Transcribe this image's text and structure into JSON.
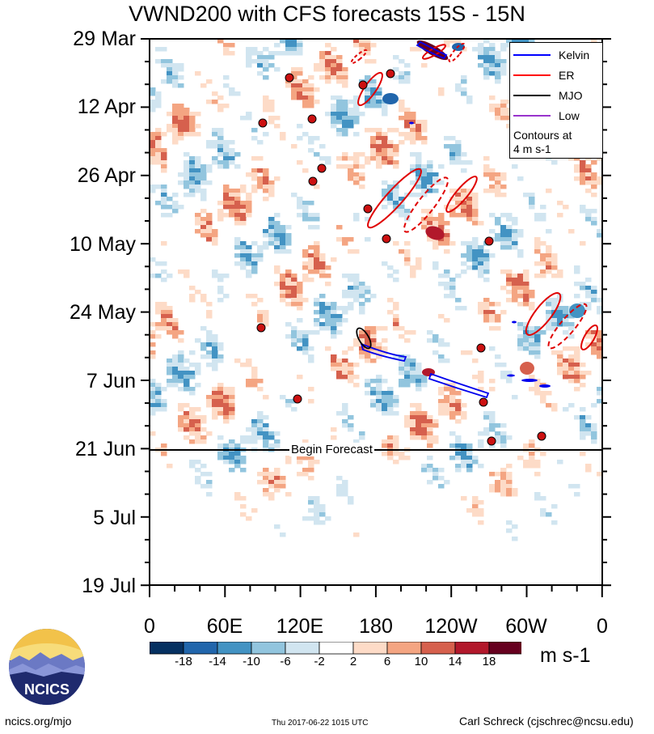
{
  "chart_data": {
    "type": "heatmap",
    "title": "VWND200 with CFS forecasts  15S - 15N",
    "xlabel": "",
    "ylabel": "",
    "x_ticks": [
      "0",
      "60E",
      "120E",
      "180",
      "120W",
      "60W",
      "0"
    ],
    "x_range_deg_east": [
      0,
      360
    ],
    "y_ticks": [
      "29 Mar",
      "12 Apr",
      "26 Apr",
      "10 May",
      "24 May",
      "7 Jun",
      "21 Jun",
      "5 Jul",
      "19 Jul"
    ],
    "y_range": [
      "29 Mar",
      "19 Jul"
    ],
    "colorbar": {
      "labels": [
        "-18",
        "-14",
        "-10",
        "-6",
        "-2",
        "2",
        "6",
        "10",
        "14",
        "18"
      ],
      "units": "m s-1",
      "colors": [
        "#053061",
        "#2166ac",
        "#4393c3",
        "#92c5de",
        "#d1e5f0",
        "#ffffff",
        "#fddbc7",
        "#f4a582",
        "#d6604d",
        "#b2182b",
        "#67001f"
      ]
    },
    "legend": {
      "placement": "top-right",
      "entries": [
        {
          "name": "Kelvin",
          "color": "#0000ff"
        },
        {
          "name": "ER",
          "color": "#ff0000"
        },
        {
          "name": "MJO",
          "color": "#000000"
        },
        {
          "name": "Low",
          "color": "#9933cc"
        }
      ],
      "note": [
        "Contours at",
        "4 m s-1"
      ]
    },
    "annotation": "Begin Forecast"
  },
  "logo_text": "NCICS",
  "footer": {
    "left": "ncics.org/mjo",
    "middle": "Thu 2017-06-22 1015 UTC",
    "right": "Carl Schreck (cjschrec@ncsu.edu)"
  }
}
